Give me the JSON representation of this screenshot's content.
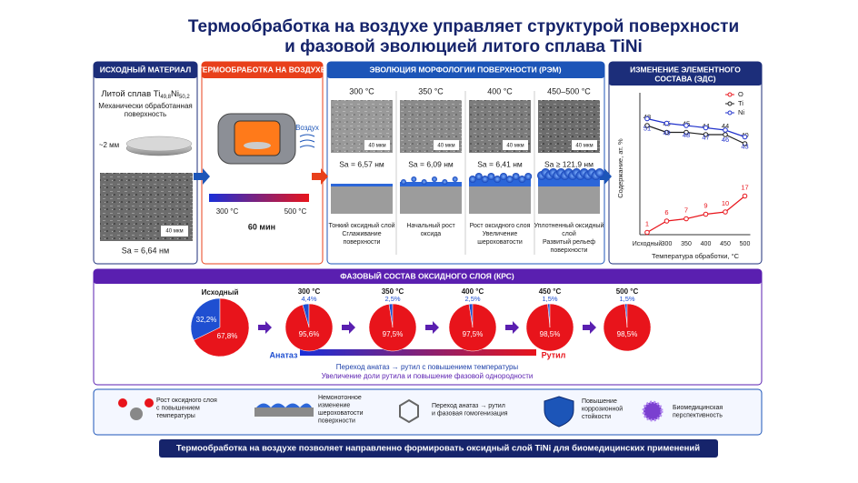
{
  "header": {
    "title_lines": [
      "Термообработка на воздухе управляет структурой поверхности",
      "и фазовой эволюцией литого сплава TiNi"
    ]
  },
  "initial": {
    "heading": "ИСХОДНЫЙ МАТЕРИАЛ",
    "alloy": {
      "text": "Литой сплав Ti",
      "ti_sub": "49,8",
      "ni": "Ni",
      "ni_sub": "50,2"
    },
    "surface_lines": [
      "Механически обработанная",
      "поверхность"
    ],
    "thickness": "~2 мм",
    "scale": "40 мкм",
    "roughness": "Sa = 6,64 нм"
  },
  "treatment": {
    "heading": "ТЕРМООБРАБОТКА НА ВОЗДУХЕ",
    "air": "Воздух",
    "t_low": "300 °C",
    "t_high": "500 °C",
    "time": "60 мин"
  },
  "morphology": {
    "heading": "ЭВОЛЮЦИЯ МОРФОЛОГИИ ПОВЕРХНОСТИ (РЭМ)",
    "stages": [
      {
        "temp": "300 °C",
        "scale": "40 мкм",
        "roughness": "Sa = 6,57 нм",
        "caption": [
          "Тонкий оксидный слой",
          "Сглаживание",
          "поверхности"
        ]
      },
      {
        "temp": "350 °C",
        "scale": "40 мкм",
        "roughness": "Sa = 6,09 нм",
        "caption": [
          "Начальный рост",
          "оксида"
        ]
      },
      {
        "temp": "400 °C",
        "scale": "40 мкм",
        "roughness": "Sa = 6,41 нм",
        "caption": [
          "Рост оксидного слоя",
          "Увеличение",
          "шероховатости"
        ]
      },
      {
        "temp": "450–500 °C",
        "scale": "40 мкм",
        "roughness": "Sa ≥ 121,9 нм",
        "caption": [
          "Уплотненный оксидный",
          "слой",
          "Развитый рельеф",
          "поверхности"
        ]
      }
    ]
  },
  "chart_data": [
    {
      "type": "line",
      "title_lines": [
        "ИЗМЕНЕНИЕ ЭЛЕМЕНТНОГО",
        "СОСТАВА (ЭДС)"
      ],
      "y_label": "Содержание, ат. %",
      "x_label": "Температура обработки, °C",
      "categories": [
        "Исходный",
        "300",
        "350",
        "400",
        "450",
        "500"
      ],
      "ylim": [
        0,
        60
      ],
      "legend": "top-right",
      "series": [
        {
          "name": "O",
          "color": "#e8141b",
          "values": [
            1,
            6,
            7,
            9,
            10,
            17
          ]
        },
        {
          "name": "Ti",
          "color": "#222222",
          "values": [
            48,
            45,
            45,
            44,
            44,
            40
          ]
        },
        {
          "name": "Ni",
          "color": "#2233cc",
          "values": [
            51,
            49,
            48,
            47,
            46,
            43
          ]
        }
      ]
    },
    {
      "type": "pie",
      "title": "ФАЗОВЫЙ СОСТАВ ОКСИДНОГО СЛОЯ (КРС)",
      "categories": [
        "Исходный",
        "300 °C",
        "350 °C",
        "400 °C",
        "450 °C",
        "500 °C"
      ],
      "series": [
        {
          "name": "Анатаз",
          "color": "#1f4fd1",
          "values": [
            32.2,
            4.4,
            2.5,
            2.5,
            1.5,
            1.5
          ],
          "value_labels": [
            "32,2%",
            "4,4%",
            "2,5%",
            "2,5%",
            "1,5%",
            "1,5%"
          ]
        },
        {
          "name": "Рутил",
          "color": "#e8141b",
          "values": [
            67.8,
            95.6,
            97.5,
            97.5,
            98.5,
            98.5
          ],
          "value_labels": [
            "67,8%",
            "95,6%",
            "97,5%",
            "97,5%",
            "98,5%",
            "98,5%"
          ]
        }
      ],
      "annotations": [
        "Переход анатаз → рутил с повышением температуры",
        "Увеличение доли рутила и повышение фазовой однородности"
      ]
    }
  ],
  "summary": {
    "items": [
      [
        "Рост оксидного слоя",
        "с повышением",
        "температуры"
      ],
      [
        "Немонотонное",
        "изменение",
        "шероховатости",
        "поверхности"
      ],
      [
        "Переход анатаз → рутил",
        "и фазовая гомогенизация"
      ],
      [
        "Повышение",
        "коррозионной",
        "стойкости"
      ],
      [
        "Биомедицинская",
        "перспективность"
      ]
    ],
    "banner": "Термообработка на воздухе позволяет направленно формировать оксидный слой TiNi для биомедицинских применений"
  }
}
